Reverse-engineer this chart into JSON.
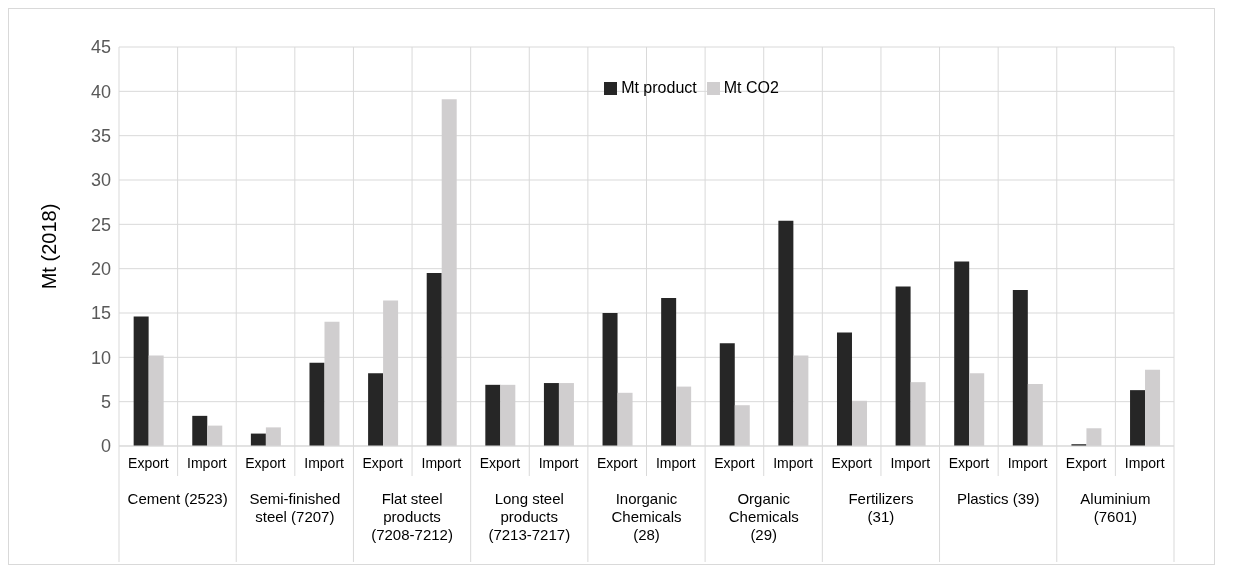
{
  "chart_data": {
    "type": "bar",
    "ylabel": "Mt (2018)",
    "categories": [
      "Export",
      "Import",
      "Export",
      "Import",
      "Export",
      "Import",
      "Export",
      "Import",
      "Export",
      "Import",
      "Export",
      "Import",
      "Export",
      "Import",
      "Export",
      "Import",
      "Export",
      "Import"
    ],
    "annotations": [
      "Cement (2523)",
      "Semi-finished steel (7207)",
      "Flat steel products (7208-7212)",
      "Long steel products (7213-7217)",
      "Inorganic Chemicals (28)",
      "Organic Chemicals (29)",
      "Fertilizers (31)",
      "Plastics (39)",
      "Aluminium (7601)"
    ],
    "series": [
      {
        "name": "Mt product",
        "color": "#262626",
        "values": [
          14.6,
          3.4,
          1.4,
          9.4,
          8.2,
          19.5,
          6.9,
          7.1,
          15.0,
          16.7,
          11.6,
          25.4,
          12.8,
          18.0,
          20.8,
          17.6,
          0.2,
          6.3
        ]
      },
      {
        "name": "Mt CO2",
        "color": "#d0cecf",
        "values": [
          10.2,
          2.3,
          2.1,
          14.0,
          16.4,
          39.1,
          6.9,
          7.1,
          6.0,
          6.7,
          4.6,
          10.2,
          5.1,
          7.2,
          8.2,
          7.0,
          2.0,
          8.6
        ]
      }
    ],
    "ylim": [
      0,
      45
    ],
    "yticks": [
      0,
      5,
      10,
      15,
      20,
      25,
      30,
      35,
      40,
      45
    ],
    "grid": true,
    "legend": "top"
  }
}
